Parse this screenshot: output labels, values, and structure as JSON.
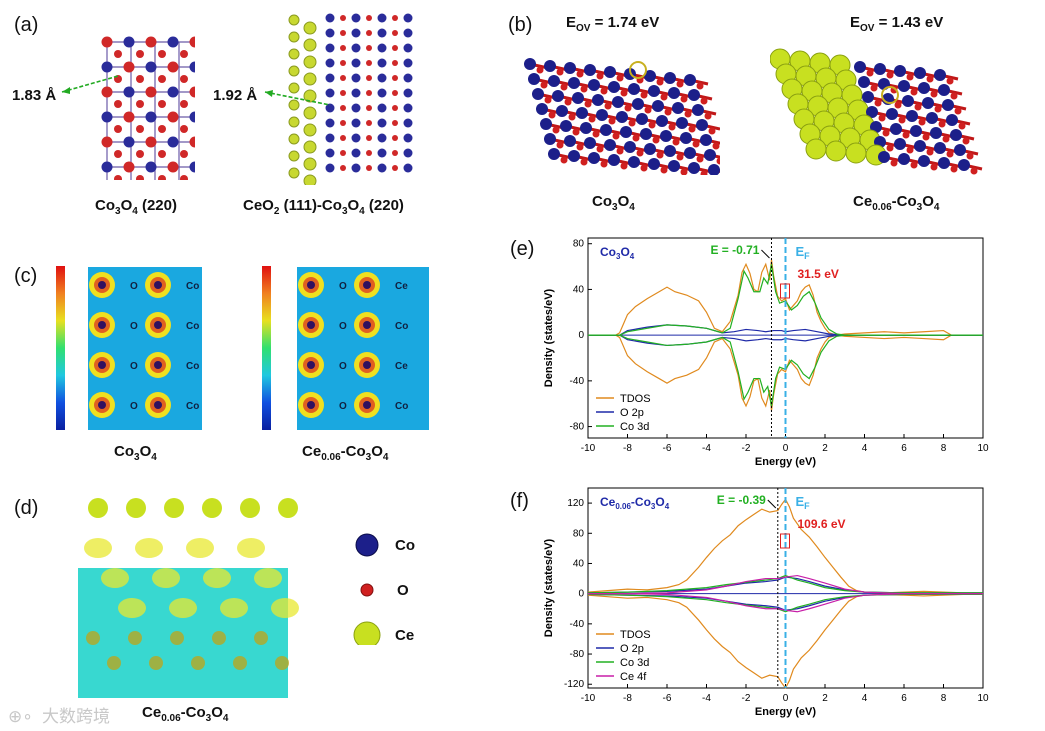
{
  "panels": {
    "a": {
      "label": "(a)",
      "dist_left": "1.83 Å",
      "dist_right": "1.92 Å",
      "cap_left": [
        "Co",
        "3",
        "O",
        "4",
        " (220)"
      ],
      "cap_right": [
        "CeO",
        "2",
        " (111)-Co",
        "3",
        "O",
        "4",
        " (220)"
      ]
    },
    "b": {
      "label": "(b)",
      "eov_left": [
        "E",
        "OV",
        " = 1.74 eV"
      ],
      "eov_right": [
        "E",
        "OV",
        " = 1.43 eV"
      ],
      "cap_left": [
        "Co",
        "3",
        "O",
        "4"
      ],
      "cap_right": [
        "Ce",
        "0.06",
        "-Co",
        "3",
        "O",
        "4"
      ]
    },
    "c": {
      "label": "(c)",
      "cap_left": [
        "Co",
        "3",
        "O",
        "4"
      ],
      "cap_right": [
        "Ce",
        "0.06",
        "-Co",
        "3",
        "O",
        "4"
      ],
      "left_labels": [
        "O",
        "Co",
        "O",
        "Co"
      ],
      "right_labels": [
        "O",
        "Ce",
        "O",
        "Co"
      ]
    },
    "d": {
      "label": "(d)",
      "legend": [
        "Co",
        "O",
        "Ce"
      ],
      "cap": [
        "Ce",
        "0.06",
        "-Co",
        "3",
        "O",
        "4"
      ],
      "watermark": "大数跨境"
    }
  },
  "colors": {
    "tdos": "#e08a1e",
    "o2p": "#1f2aa8",
    "co3d": "#22b022",
    "ce4f": "#c81ea8",
    "ef": "#3ab0e6",
    "note_red": "#e02020"
  },
  "chart_data": [
    {
      "panel_label": "(e)",
      "type": "line",
      "title": "",
      "inset_title": [
        "Co",
        "3",
        "O",
        "4"
      ],
      "xlabel": "Energy (eV)",
      "ylabel": "Density (states/eV)",
      "xlim": [
        -10,
        10
      ],
      "ylim": [
        -90,
        85
      ],
      "xticks": [
        -10,
        -8,
        -6,
        -4,
        -2,
        0,
        2,
        4,
        6,
        8,
        10
      ],
      "yticks": [
        -80,
        -40,
        0,
        40,
        80
      ],
      "annotation_e": "E = -0.71",
      "e_value": -0.71,
      "ef_label": [
        "E",
        "F"
      ],
      "peak_label": "31.5 eV",
      "legend": [
        "TDOS",
        "O 2p",
        "Co 3d"
      ],
      "series": [
        {
          "name": "TDOS",
          "x": [
            -10,
            -8.6,
            -8.4,
            -8.2,
            -8,
            -7.6,
            -7,
            -6.4,
            -6,
            -5.6,
            -5,
            -4.4,
            -4,
            -3.6,
            -3.2,
            -2.8,
            -2.4,
            -2.2,
            -2,
            -1.8,
            -1.6,
            -1.4,
            -1.2,
            -1,
            -0.8,
            -0.71,
            -0.6,
            -0.4,
            -0.2,
            0,
            0.2,
            0.4,
            0.6,
            0.8,
            1,
            1.2,
            1.4,
            1.6,
            1.8,
            2,
            2.2,
            2.6,
            3,
            4,
            5,
            6,
            7,
            8,
            8.4,
            9,
            10
          ],
          "y": [
            0,
            0,
            2,
            10,
            18,
            25,
            32,
            38,
            42,
            38,
            35,
            30,
            20,
            6,
            3,
            12,
            35,
            55,
            62,
            54,
            40,
            38,
            55,
            62,
            48,
            66,
            52,
            34,
            30,
            32,
            22,
            26,
            30,
            38,
            42,
            44,
            35,
            20,
            12,
            6,
            2,
            0,
            1,
            2,
            3,
            2,
            3,
            4,
            0,
            0,
            0
          ]
        },
        {
          "name": "O 2p",
          "x": [
            -10,
            -8.4,
            -8,
            -7,
            -6,
            -5,
            -4,
            -3.2,
            -2.6,
            -2,
            -1.4,
            -1,
            -0.6,
            -0.2,
            0,
            0.4,
            1,
            1.6,
            2.2,
            3,
            4,
            6,
            8,
            8.4,
            10
          ],
          "y": [
            0,
            0,
            4,
            7,
            9,
            8,
            6,
            2,
            3,
            5,
            4,
            3,
            4,
            4,
            3,
            4,
            5,
            3,
            1,
            0,
            0,
            0,
            0,
            0,
            0
          ]
        },
        {
          "name": "Co 3d",
          "x": [
            -10,
            -8.4,
            -8,
            -7,
            -6,
            -5,
            -4,
            -3.2,
            -2.8,
            -2.4,
            -2.1,
            -1.9,
            -1.6,
            -1.3,
            -1.1,
            -0.9,
            -0.71,
            -0.5,
            -0.3,
            0,
            0.3,
            0.6,
            0.9,
            1.2,
            1.5,
            1.8,
            2.2,
            2.6,
            3,
            4,
            10
          ],
          "y": [
            0,
            0,
            3,
            6,
            9,
            8,
            6,
            2,
            6,
            32,
            56,
            50,
            38,
            38,
            50,
            45,
            62,
            38,
            28,
            30,
            22,
            26,
            34,
            38,
            28,
            15,
            5,
            1,
            0,
            0,
            0
          ]
        }
      ]
    },
    {
      "panel_label": "(f)",
      "type": "line",
      "title": "",
      "inset_title": [
        "Ce",
        "0.06",
        "-Co",
        "3",
        "O",
        "4"
      ],
      "xlabel": "Energy (eV)",
      "ylabel": "Density (states/eV)",
      "xlim": [
        -10,
        10
      ],
      "ylim": [
        -125,
        140
      ],
      "xticks": [
        -10,
        -8,
        -6,
        -4,
        -2,
        0,
        2,
        4,
        6,
        8,
        10
      ],
      "yticks": [
        -120,
        -80,
        -40,
        0,
        40,
        80,
        120
      ],
      "annotation_e": "E = -0.39",
      "e_value": -0.39,
      "ef_label": [
        "E",
        "F"
      ],
      "peak_label": "109.6 eV",
      "legend": [
        "TDOS",
        "O 2p",
        "Co 3d",
        "Ce 4f"
      ],
      "series": [
        {
          "name": "TDOS",
          "x": [
            -10,
            -9,
            -8,
            -7,
            -6,
            -5.4,
            -5,
            -4.4,
            -4,
            -3.6,
            -3.2,
            -2.8,
            -2.4,
            -2,
            -1.6,
            -1.2,
            -0.8,
            -0.39,
            -0.2,
            0,
            0.2,
            0.4,
            0.8,
            1.2,
            1.6,
            2,
            2.4,
            2.8,
            3.2,
            3.6,
            4,
            5,
            6,
            7,
            8,
            9,
            10
          ],
          "y": [
            2,
            4,
            6,
            5,
            8,
            12,
            18,
            35,
            48,
            60,
            70,
            78,
            90,
            98,
            105,
            112,
            108,
            110,
            118,
            125,
            115,
            100,
            85,
            75,
            62,
            48,
            35,
            22,
            10,
            4,
            2,
            1,
            2,
            3,
            2,
            1,
            1
          ]
        },
        {
          "name": "O 2p",
          "x": [
            -10,
            -8,
            -6,
            -4,
            -3,
            -2,
            -1,
            -0.39,
            0,
            0.6,
            1.2,
            2,
            3,
            4,
            6,
            8,
            10
          ],
          "y": [
            1,
            2,
            3,
            6,
            10,
            14,
            16,
            18,
            22,
            20,
            16,
            10,
            5,
            2,
            1,
            1,
            1
          ]
        },
        {
          "name": "Co 3d",
          "x": [
            -10,
            -8,
            -6,
            -4,
            -3,
            -2,
            -1,
            -0.39,
            0,
            0.6,
            1.2,
            2,
            3,
            4,
            6,
            8,
            10
          ],
          "y": [
            1,
            2,
            4,
            8,
            12,
            15,
            18,
            20,
            24,
            18,
            14,
            8,
            4,
            2,
            1,
            1,
            1
          ]
        },
        {
          "name": "Ce 4f",
          "x": [
            -10,
            -8,
            -6,
            -4,
            -3,
            -2,
            -1,
            -0.39,
            0,
            0.6,
            1.2,
            2,
            3,
            4,
            6,
            8,
            10
          ],
          "y": [
            0,
            0,
            1,
            5,
            10,
            16,
            20,
            20,
            22,
            24,
            20,
            14,
            6,
            2,
            0,
            0,
            0
          ]
        }
      ]
    }
  ]
}
